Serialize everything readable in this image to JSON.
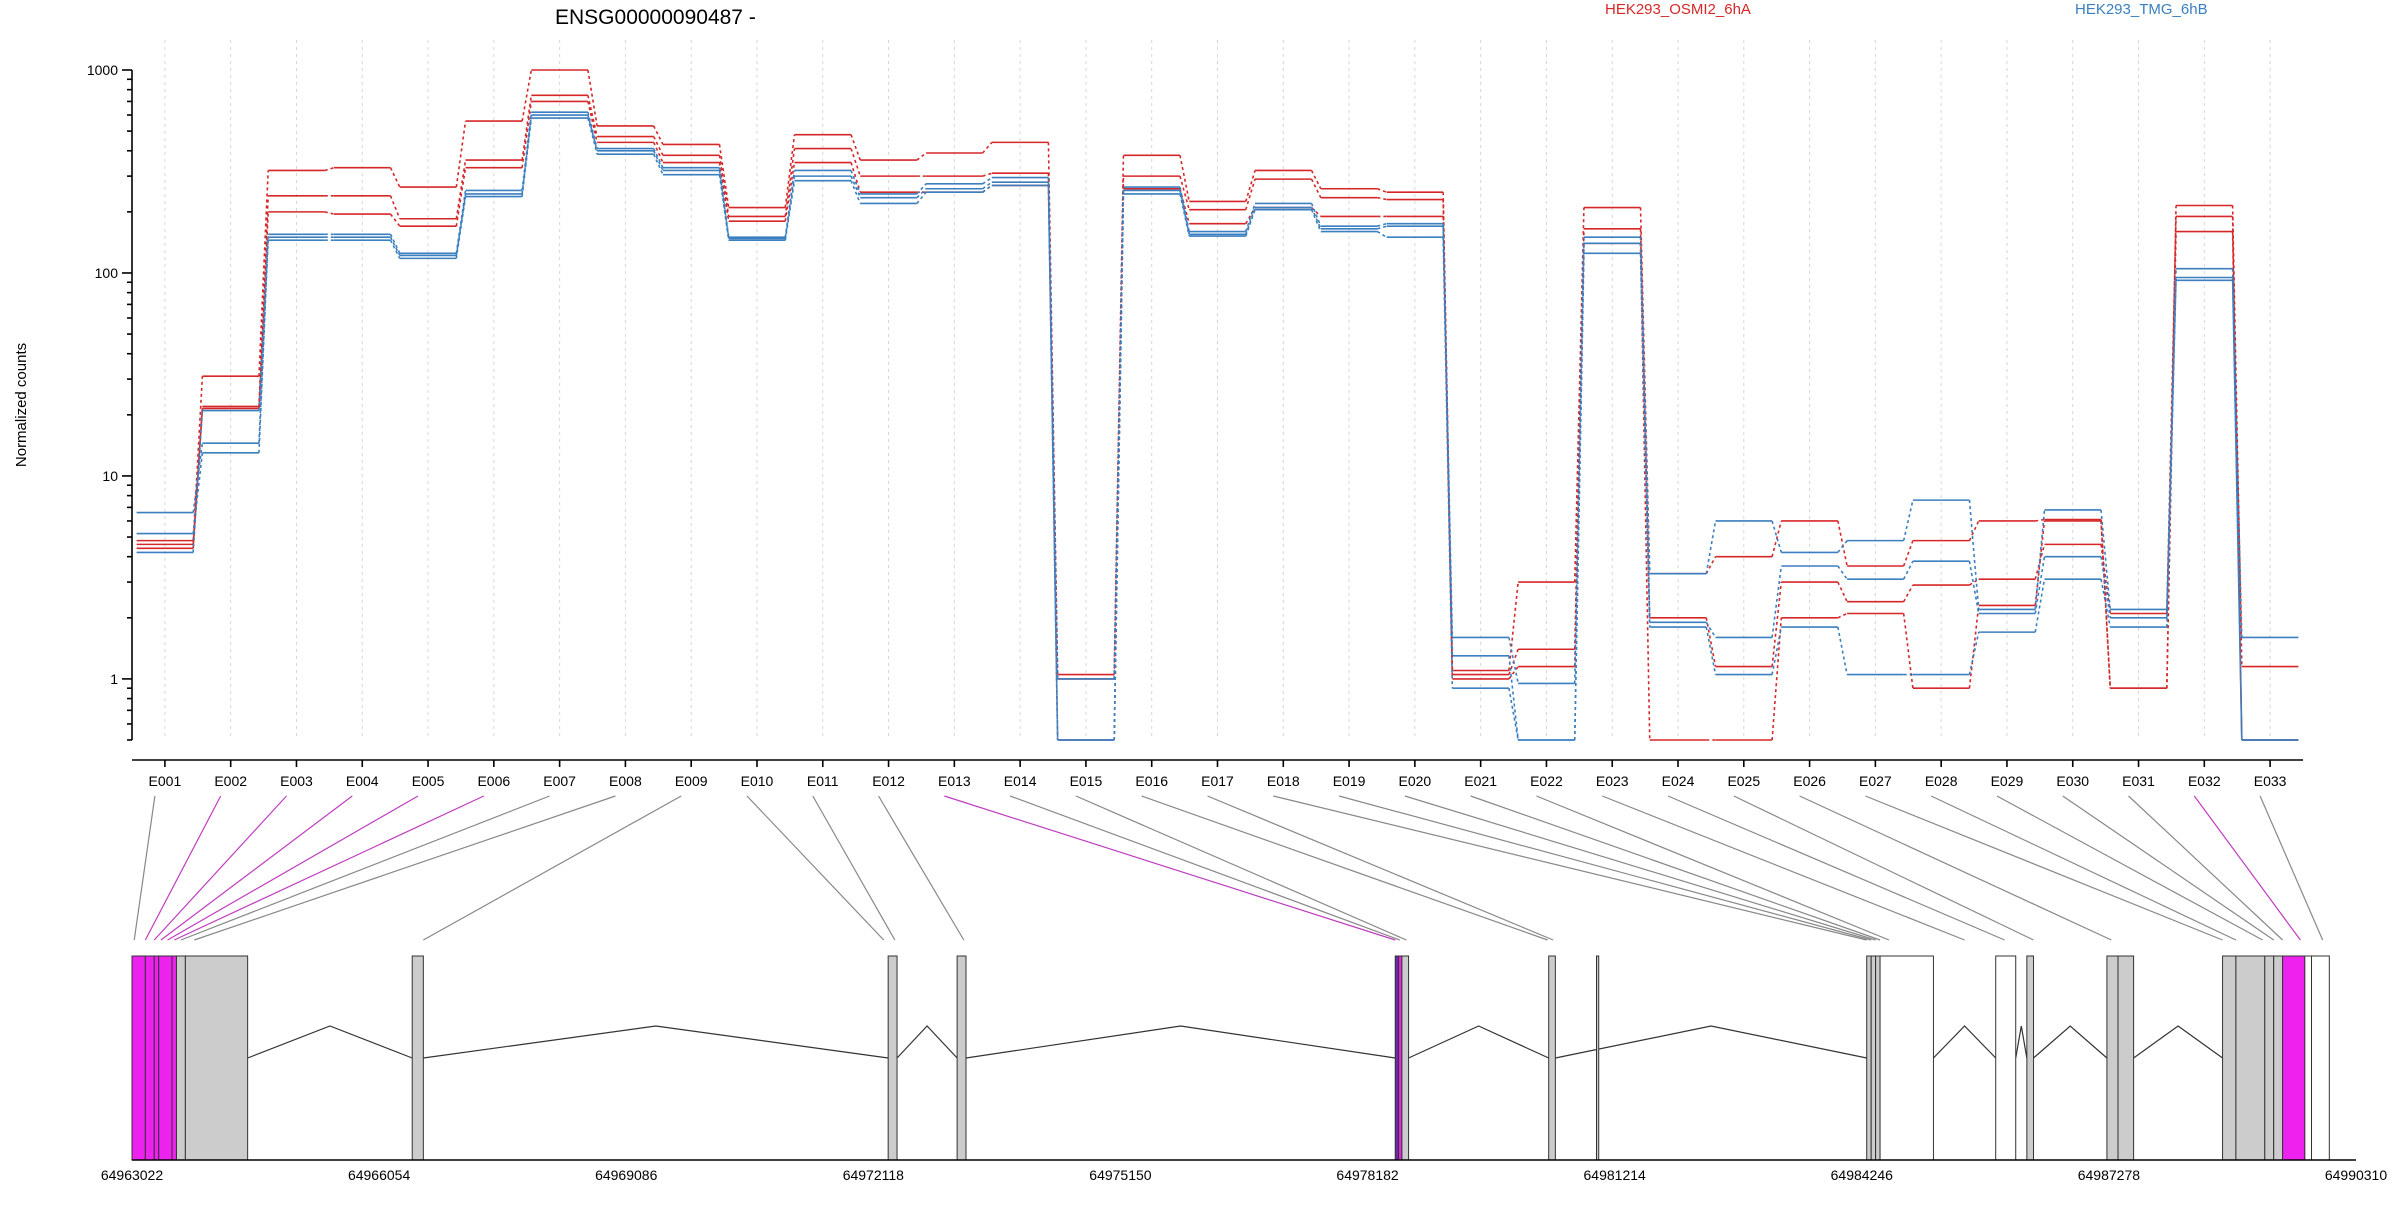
{
  "chart_data": {
    "type": "line",
    "title": "ENSG00000090487 -",
    "ylabel": "Normalized counts",
    "yscale": "log",
    "ylim": [
      0.5,
      1000
    ],
    "y_ticks": [
      1,
      10,
      100,
      1000
    ],
    "y_tick_labels": [
      "1",
      "10",
      "100",
      "1000"
    ],
    "grid": true,
    "legend": [
      {
        "name": "HEK293_OSMI2_6hA",
        "color": "#d62728"
      },
      {
        "name": "HEK293_TMG_6hB",
        "color": "#3a7fbf"
      }
    ],
    "categories": [
      "E001",
      "E002",
      "E003",
      "E004",
      "E005",
      "E006",
      "E007",
      "E008",
      "E009",
      "E010",
      "E011",
      "E012",
      "E013",
      "E014",
      "E015",
      "E016",
      "E017",
      "E018",
      "E019",
      "E020",
      "E021",
      "E022",
      "E023",
      "E024",
      "E025",
      "E026",
      "E027",
      "E028",
      "E029",
      "E030",
      "E031",
      "E032",
      "E033"
    ],
    "series": [
      {
        "group": "HEK293_OSMI2_6hA",
        "color": "#d62728",
        "values": [
          4.8,
          31,
          320,
          330,
          265,
          560,
          1000,
          530,
          430,
          210,
          480,
          360,
          390,
          440,
          1.05,
          380,
          225,
          320,
          260,
          250,
          1.1,
          3,
          210,
          3.3,
          4,
          6,
          3.6,
          4.8,
          6,
          6.1,
          0.9,
          215,
          1.15
        ]
      },
      {
        "group": "HEK293_OSMI2_6hA",
        "color": "#d62728",
        "values": [
          4.6,
          22,
          240,
          240,
          185,
          360,
          750,
          470,
          380,
          190,
          410,
          300,
          300,
          310,
          1.0,
          300,
          205,
          290,
          235,
          230,
          1.05,
          1.4,
          165,
          2.0,
          1.15,
          3,
          2.4,
          2.9,
          3.1,
          4.6,
          2.1,
          190,
          0.5
        ]
      },
      {
        "group": "HEK293_OSMI2_6hA",
        "color": "#d62728",
        "values": [
          4.4,
          21.5,
          200,
          195,
          170,
          330,
          700,
          440,
          350,
          180,
          350,
          250,
          250,
          270,
          0.5,
          260,
          175,
          210,
          190,
          190,
          1.0,
          1.15,
          140,
          0.5,
          0.5,
          2,
          2.1,
          0.9,
          2.3,
          6,
          0.9,
          160,
          0.5
        ]
      },
      {
        "group": "HEK293_TMG_6hB",
        "color": "#3a7fbf",
        "values": [
          6.6,
          14.5,
          155,
          155,
          125,
          255,
          620,
          410,
          330,
          150,
          320,
          245,
          275,
          295,
          1.0,
          265,
          160,
          220,
          170,
          175,
          1.6,
          0.95,
          150,
          3.3,
          6,
          4.2,
          4.8,
          7.6,
          2.2,
          6.8,
          2.2,
          105,
          1.6
        ]
      },
      {
        "group": "HEK293_TMG_6hB",
        "color": "#3a7fbf",
        "values": [
          5.2,
          13,
          150,
          150,
          122,
          245,
          600,
          400,
          320,
          148,
          300,
          235,
          260,
          280,
          0.5,
          255,
          155,
          210,
          165,
          170,
          1.3,
          0.5,
          140,
          1.9,
          1.6,
          3.6,
          3.1,
          3.8,
          2.1,
          4.0,
          2.0,
          95,
          0.5
        ]
      },
      {
        "group": "HEK293_TMG_6hB",
        "color": "#3a7fbf",
        "values": [
          4.2,
          21,
          145,
          145,
          118,
          238,
          580,
          385,
          305,
          145,
          285,
          220,
          250,
          270,
          0.5,
          245,
          152,
          205,
          160,
          150,
          0.9,
          0.5,
          125,
          1.8,
          1.05,
          1.8,
          1.05,
          1.05,
          1.7,
          3.1,
          1.8,
          92,
          0.5
        ]
      }
    ],
    "gene_model": {
      "x_tick_labels": [
        "64963022",
        "64966054",
        "64969086",
        "64972118",
        "64975150",
        "64978182",
        "64981214",
        "64984246",
        "64987278",
        "64990310"
      ]
    }
  }
}
